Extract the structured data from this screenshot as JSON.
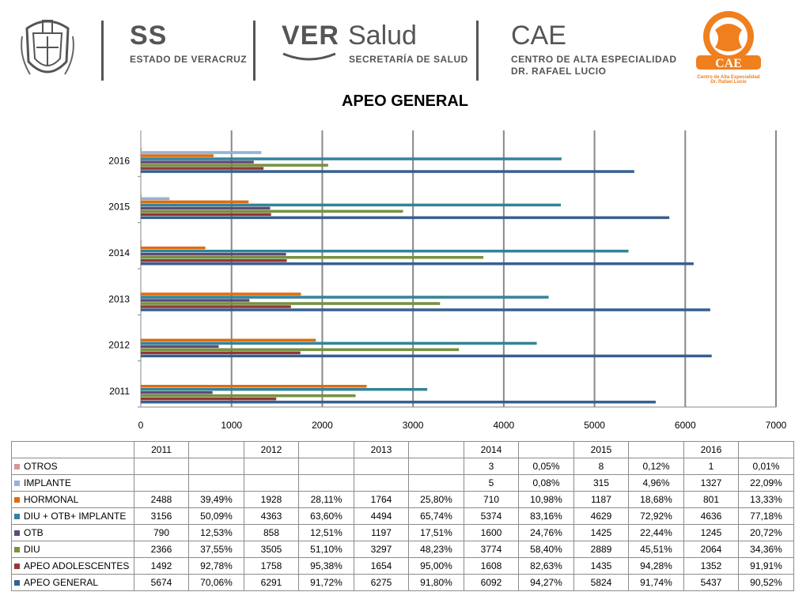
{
  "header": {
    "ss_title": "SS",
    "ss_sub": "ESTADO DE VERACRUZ",
    "ver": "VER",
    "salud": "Salud",
    "ver_sub": "SECRETARÍA DE SALUD",
    "cae_title": "CAE",
    "cae_sub1": "CENTRO DE ALTA ESPECIALIDAD",
    "cae_sub2": "DR. RAFAEL LUCIO",
    "logo_text": "CAE",
    "logo_caption1": "Centro de Alta Especialidad",
    "logo_caption2": "Dr. Rafael Lucio"
  },
  "colors": {
    "logo_orange": "#f07f1e",
    "axis_gray": "#888888"
  },
  "chart_data": {
    "type": "bar",
    "orientation": "horizontal",
    "title": "APEO GENERAL",
    "categories": [
      "2011",
      "2012",
      "2013",
      "2014",
      "2015",
      "2016"
    ],
    "xlim": [
      0,
      7000
    ],
    "xticks": [
      "0",
      "1000",
      "2000",
      "3000",
      "4000",
      "5000",
      "6000",
      "7000"
    ],
    "grid": true,
    "series": [
      {
        "name": "OTROS",
        "color": "#d99694",
        "values": [
          null,
          null,
          null,
          3,
          8,
          1
        ]
      },
      {
        "name": "IMPLANTE",
        "color": "#95b3d7",
        "values": [
          null,
          null,
          null,
          5,
          315,
          1327
        ]
      },
      {
        "name": "HORMONAL",
        "color": "#e46c0a",
        "values": [
          2488,
          1928,
          1764,
          710,
          1187,
          801
        ]
      },
      {
        "name": "DIU + OTB+ IMPLANTE",
        "color": "#31859c",
        "values": [
          3156,
          4363,
          4494,
          5374,
          4629,
          4636
        ]
      },
      {
        "name": "OTB",
        "color": "#604a7b",
        "values": [
          790,
          858,
          1197,
          1600,
          1425,
          1245
        ]
      },
      {
        "name": "DIU",
        "color": "#77933c",
        "values": [
          2366,
          3505,
          3297,
          3774,
          2889,
          2064
        ]
      },
      {
        "name": "APEO ADOLESCENTES",
        "color": "#953735",
        "values": [
          1492,
          1758,
          1654,
          1608,
          1435,
          1352
        ]
      },
      {
        "name": "APEO GENERAL",
        "color": "#376092",
        "values": [
          5674,
          6291,
          6275,
          6092,
          5824,
          5437
        ]
      }
    ]
  },
  "table": {
    "header": [
      "",
      "2011",
      "",
      "2012",
      "",
      "2013",
      "",
      "2014",
      "",
      "2015",
      "",
      "2016",
      ""
    ],
    "rows": [
      {
        "label": "OTROS",
        "cells": [
          "",
          "",
          "",
          "",
          "",
          "",
          "3",
          "0,05%",
          "8",
          "0,12%",
          "1",
          "0,01%"
        ]
      },
      {
        "label": "IMPLANTE",
        "cells": [
          "",
          "",
          "",
          "",
          "",
          "",
          "5",
          "0,08%",
          "315",
          "4,96%",
          "1327",
          "22,09%"
        ]
      },
      {
        "label": "HORMONAL",
        "cells": [
          "2488",
          "39,49%",
          "1928",
          "28,11%",
          "1764",
          "25,80%",
          "710",
          "10,98%",
          "1187",
          "18,68%",
          "801",
          "13,33%"
        ]
      },
      {
        "label": "DIU + OTB+ IMPLANTE",
        "cells": [
          "3156",
          "50,09%",
          "4363",
          "63,60%",
          "4494",
          "65,74%",
          "5374",
          "83,16%",
          "4629",
          "72,92%",
          "4636",
          "77,18%"
        ]
      },
      {
        "label": "OTB",
        "cells": [
          "790",
          "12,53%",
          "858",
          "12,51%",
          "1197",
          "17,51%",
          "1600",
          "24,76%",
          "1425",
          "22,44%",
          "1245",
          "20,72%"
        ]
      },
      {
        "label": "DIU",
        "cells": [
          "2366",
          "37,55%",
          "3505",
          "51,10%",
          "3297",
          "48,23%",
          "3774",
          "58,40%",
          "2889",
          "45,51%",
          "2064",
          "34,36%"
        ]
      },
      {
        "label": "APEO ADOLESCENTES",
        "cells": [
          "1492",
          "92,78%",
          "1758",
          "95,38%",
          "1654",
          "95,00%",
          "1608",
          "82,63%",
          "1435",
          "94,28%",
          "1352",
          "91,91%"
        ]
      },
      {
        "label": "APEO GENERAL",
        "cells": [
          "5674",
          "70,06%",
          "6291",
          "91,72%",
          "6275",
          "91,80%",
          "6092",
          "94,27%",
          "5824",
          "91,74%",
          "5437",
          "90,52%"
        ]
      }
    ]
  }
}
